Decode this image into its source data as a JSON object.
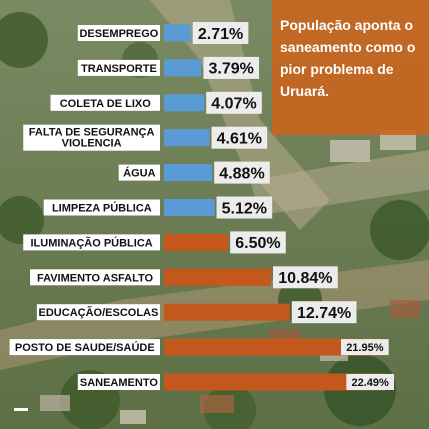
{
  "title_lines": [
    "População aponta o",
    "saneamento como o",
    "pior problema de",
    "Uruará."
  ],
  "colors": {
    "blue_bar": "#5b9bd5",
    "orange_bar": "#c4581c",
    "title_panel": "#c8651f",
    "label_box": "#ffffff",
    "value_box": "#ececec"
  },
  "chart_data": {
    "type": "bar",
    "orientation": "horizontal",
    "categories": [
      "DESEMPREGO",
      "TRANSPORTE",
      "COLETA DE LIXO",
      "FALTA DE SEGURANÇA\nVIOLENCIA",
      "ÁGUA",
      "LIMPEZA PÚBLICA",
      "ILUMINAÇÃO PÚBLICA",
      "FAVIMENTO ASFALTO",
      "EDUCAÇÃO/ESCOLAS",
      "POSTO DE SAUDE/SAÚDE",
      "SANEAMENTO"
    ],
    "values": [
      2.71,
      3.79,
      4.07,
      4.61,
      4.88,
      5.12,
      6.5,
      10.84,
      12.74,
      21.95,
      22.49
    ],
    "value_labels": [
      "2.71%",
      "3.79%",
      "4.07%",
      "4.61%",
      "4.88%",
      "5.12%",
      "6.50%",
      "10.84%",
      "12.74%",
      "21.95%",
      "22.49%"
    ],
    "bar_colors": [
      "blue",
      "blue",
      "blue",
      "blue",
      "blue",
      "blue",
      "orange",
      "orange",
      "orange",
      "orange",
      "orange"
    ],
    "xlim": [
      0,
      22.49
    ]
  }
}
